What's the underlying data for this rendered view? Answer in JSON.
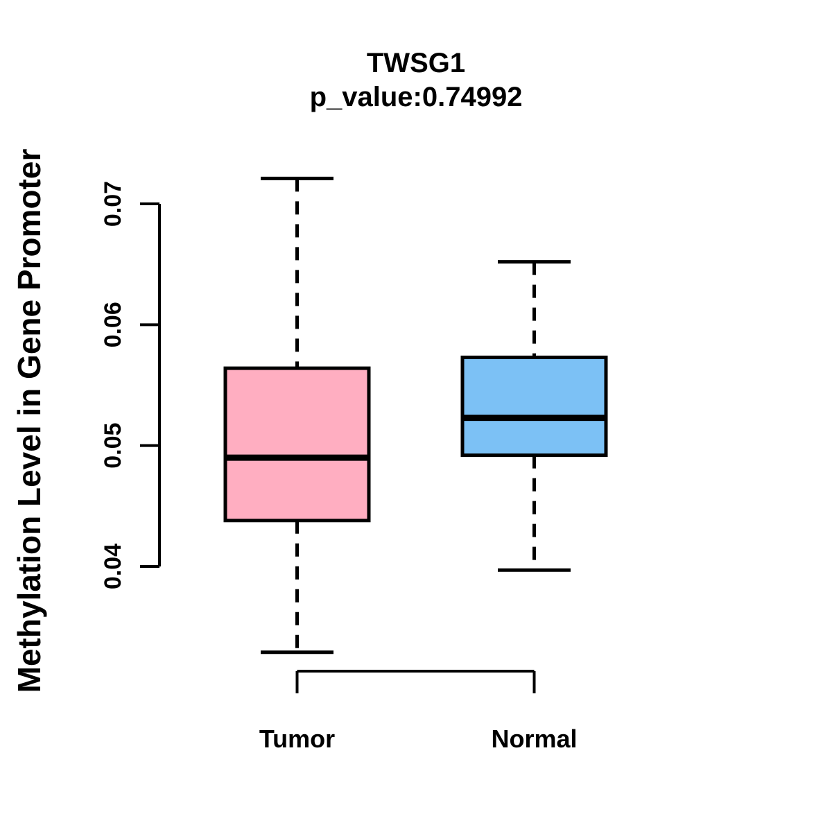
{
  "chart_data": {
    "type": "boxplot",
    "title": "TWSG1",
    "subtitle": "p_value:0.74992",
    "xlabel": "",
    "ylabel": "Methylation Level in Gene Promoter",
    "axis_range": [
      0.04,
      0.07
    ],
    "yticks": [
      "0.04",
      "0.05",
      "0.06",
      "0.07"
    ],
    "grid": false,
    "legend_position": "none",
    "line_color": "#000000",
    "background_color": "#ffffff",
    "groups": [
      {
        "label": "Tumor",
        "fill_color": "#FFAEC1",
        "stats": {
          "whisker_low": 0.0329,
          "q1": 0.0438,
          "median": 0.049,
          "q3": 0.0564,
          "whisker_high": 0.0721
        }
      },
      {
        "label": "Normal",
        "fill_color": "#7CC1F5",
        "stats": {
          "whisker_low": 0.0397,
          "q1": 0.0492,
          "median": 0.0523,
          "q3": 0.0573,
          "whisker_high": 0.0652
        }
      }
    ]
  }
}
